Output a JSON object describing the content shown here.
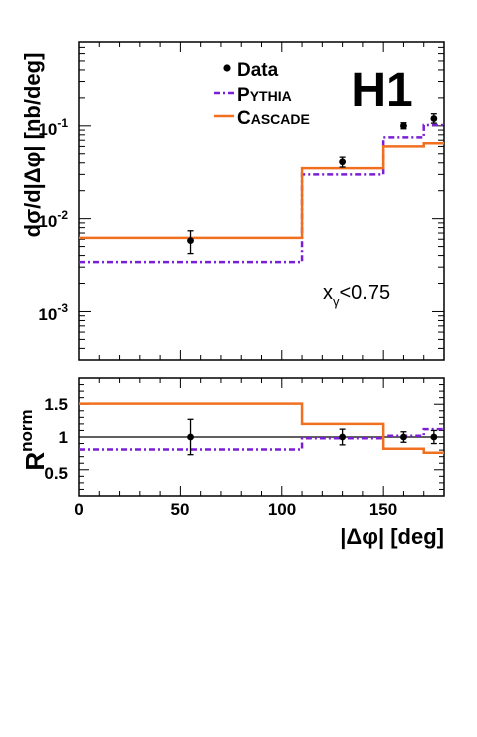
{
  "colors": {
    "data": "#000000",
    "pythia": "#7a1fd6",
    "cascade": "#f07020"
  },
  "chart_data": [
    {
      "type": "line",
      "panel": "upper",
      "xlabel": "",
      "ylabel": "dσ/d|Δφ| [nb/deg]",
      "xlim": [
        0,
        180
      ],
      "ylim": [
        0.0003,
        0.8
      ],
      "yscale": "log",
      "y_ticks": [
        {
          "value": 0.001,
          "base": "10",
          "exp": "-3"
        },
        {
          "value": 0.01,
          "base": "10",
          "exp": "-2"
        },
        {
          "value": 0.1,
          "base": "10",
          "exp": "-1"
        }
      ],
      "experiment_label": "H1",
      "annotation": {
        "main": "x",
        "sub": "γ",
        "rest": "<0.75"
      },
      "legend": {
        "placement": "top-center",
        "entries": [
          {
            "key": "data",
            "label": "Data"
          },
          {
            "key": "pythia",
            "label_big": "P",
            "label_small": "YTHIA"
          },
          {
            "key": "cascade",
            "label_big": "C",
            "label_small": "ASCADE"
          }
        ]
      },
      "series": [
        {
          "key": "data",
          "kind": "points",
          "points": [
            {
              "x": 55,
              "y": 0.0058,
              "err_lo": 0.0042,
              "err_hi": 0.0074
            },
            {
              "x": 130,
              "y": 0.041,
              "err_lo": 0.036,
              "err_hi": 0.046
            },
            {
              "x": 160,
              "y": 0.1,
              "err_lo": 0.093,
              "err_hi": 0.108
            },
            {
              "x": 175,
              "y": 0.12,
              "err_lo": 0.107,
              "err_hi": 0.135
            }
          ]
        },
        {
          "key": "pythia",
          "kind": "histogram",
          "bins": [
            {
              "x0": 0,
              "x1": 110,
              "y": 0.0034
            },
            {
              "x0": 110,
              "x1": 150,
              "y": 0.03
            },
            {
              "x0": 150,
              "x1": 170,
              "y": 0.075
            },
            {
              "x0": 170,
              "x1": 180,
              "y": 0.102
            }
          ]
        },
        {
          "key": "cascade",
          "kind": "histogram",
          "bins": [
            {
              "x0": 0,
              "x1": 110,
              "y": 0.0062
            },
            {
              "x0": 110,
              "x1": 150,
              "y": 0.035
            },
            {
              "x0": 150,
              "x1": 170,
              "y": 0.06
            },
            {
              "x0": 170,
              "x1": 180,
              "y": 0.065
            }
          ]
        }
      ]
    },
    {
      "type": "line",
      "panel": "lower",
      "xlabel": "|Δφ| [deg]",
      "ylabel": "R",
      "ylabel_sup": "norm",
      "xlim": [
        0,
        180
      ],
      "ylim": [
        0.1,
        1.9
      ],
      "x_ticks": [
        {
          "value": 0,
          "label": "0"
        },
        {
          "value": 50,
          "label": "50"
        },
        {
          "value": 100,
          "label": "100"
        },
        {
          "value": 150,
          "label": "150"
        }
      ],
      "y_ticks": [
        {
          "value": 0.5,
          "label": "0.5"
        },
        {
          "value": 1,
          "label": "1"
        },
        {
          "value": 1.5,
          "label": "1.5"
        }
      ],
      "reference_line": 1,
      "series": [
        {
          "key": "data",
          "kind": "points",
          "points": [
            {
              "x": 55,
              "y": 1.0,
              "err_lo": 0.73,
              "err_hi": 1.27
            },
            {
              "x": 130,
              "y": 1.0,
              "err_lo": 0.88,
              "err_hi": 1.12
            },
            {
              "x": 160,
              "y": 1.0,
              "err_lo": 0.92,
              "err_hi": 1.08
            },
            {
              "x": 175,
              "y": 1.0,
              "err_lo": 0.9,
              "err_hi": 1.1
            }
          ]
        },
        {
          "key": "pythia",
          "kind": "histogram",
          "bins": [
            {
              "x0": 0,
              "x1": 110,
              "y": 0.81
            },
            {
              "x0": 110,
              "x1": 150,
              "y": 0.98
            },
            {
              "x0": 150,
              "x1": 170,
              "y": 1.02
            },
            {
              "x0": 170,
              "x1": 180,
              "y": 1.12
            }
          ]
        },
        {
          "key": "cascade",
          "kind": "histogram",
          "bins": [
            {
              "x0": 0,
              "x1": 110,
              "y": 1.51
            },
            {
              "x0": 110,
              "x1": 150,
              "y": 1.2
            },
            {
              "x0": 150,
              "x1": 170,
              "y": 0.82
            },
            {
              "x0": 170,
              "x1": 180,
              "y": 0.76
            }
          ]
        }
      ]
    }
  ]
}
